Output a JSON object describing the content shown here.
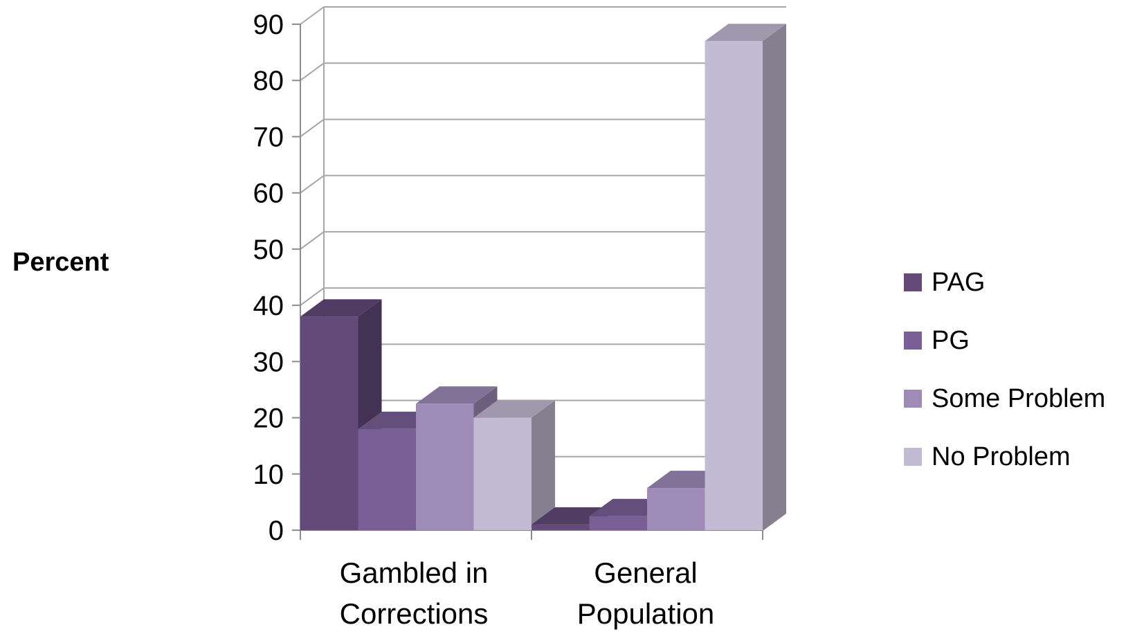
{
  "chart_data": {
    "type": "bar",
    "three_d": true,
    "ylabel": "Percent",
    "xlabel": "",
    "ylim": [
      0,
      90
    ],
    "y_ticks": [
      "0",
      "10",
      "20",
      "30",
      "40",
      "50",
      "60",
      "70",
      "80",
      "90"
    ],
    "categories": [
      {
        "line1": "Gambled in",
        "line2": "Corrections"
      },
      {
        "line1": "General",
        "line2": "Population"
      }
    ],
    "series": [
      {
        "name": "PAG",
        "values": [
          38,
          1
        ],
        "color": "#634a7a"
      },
      {
        "name": "PG",
        "values": [
          18,
          2.5
        ],
        "color": "#7a5f97"
      },
      {
        "name": "Some Problem",
        "values": [
          22.5,
          7.5
        ],
        "color": "#9f8bb8"
      },
      {
        "name": "No Problem",
        "values": [
          20,
          87
        ],
        "color": "#c3bbd4"
      }
    ],
    "grid": true,
    "legend_position": "right"
  }
}
